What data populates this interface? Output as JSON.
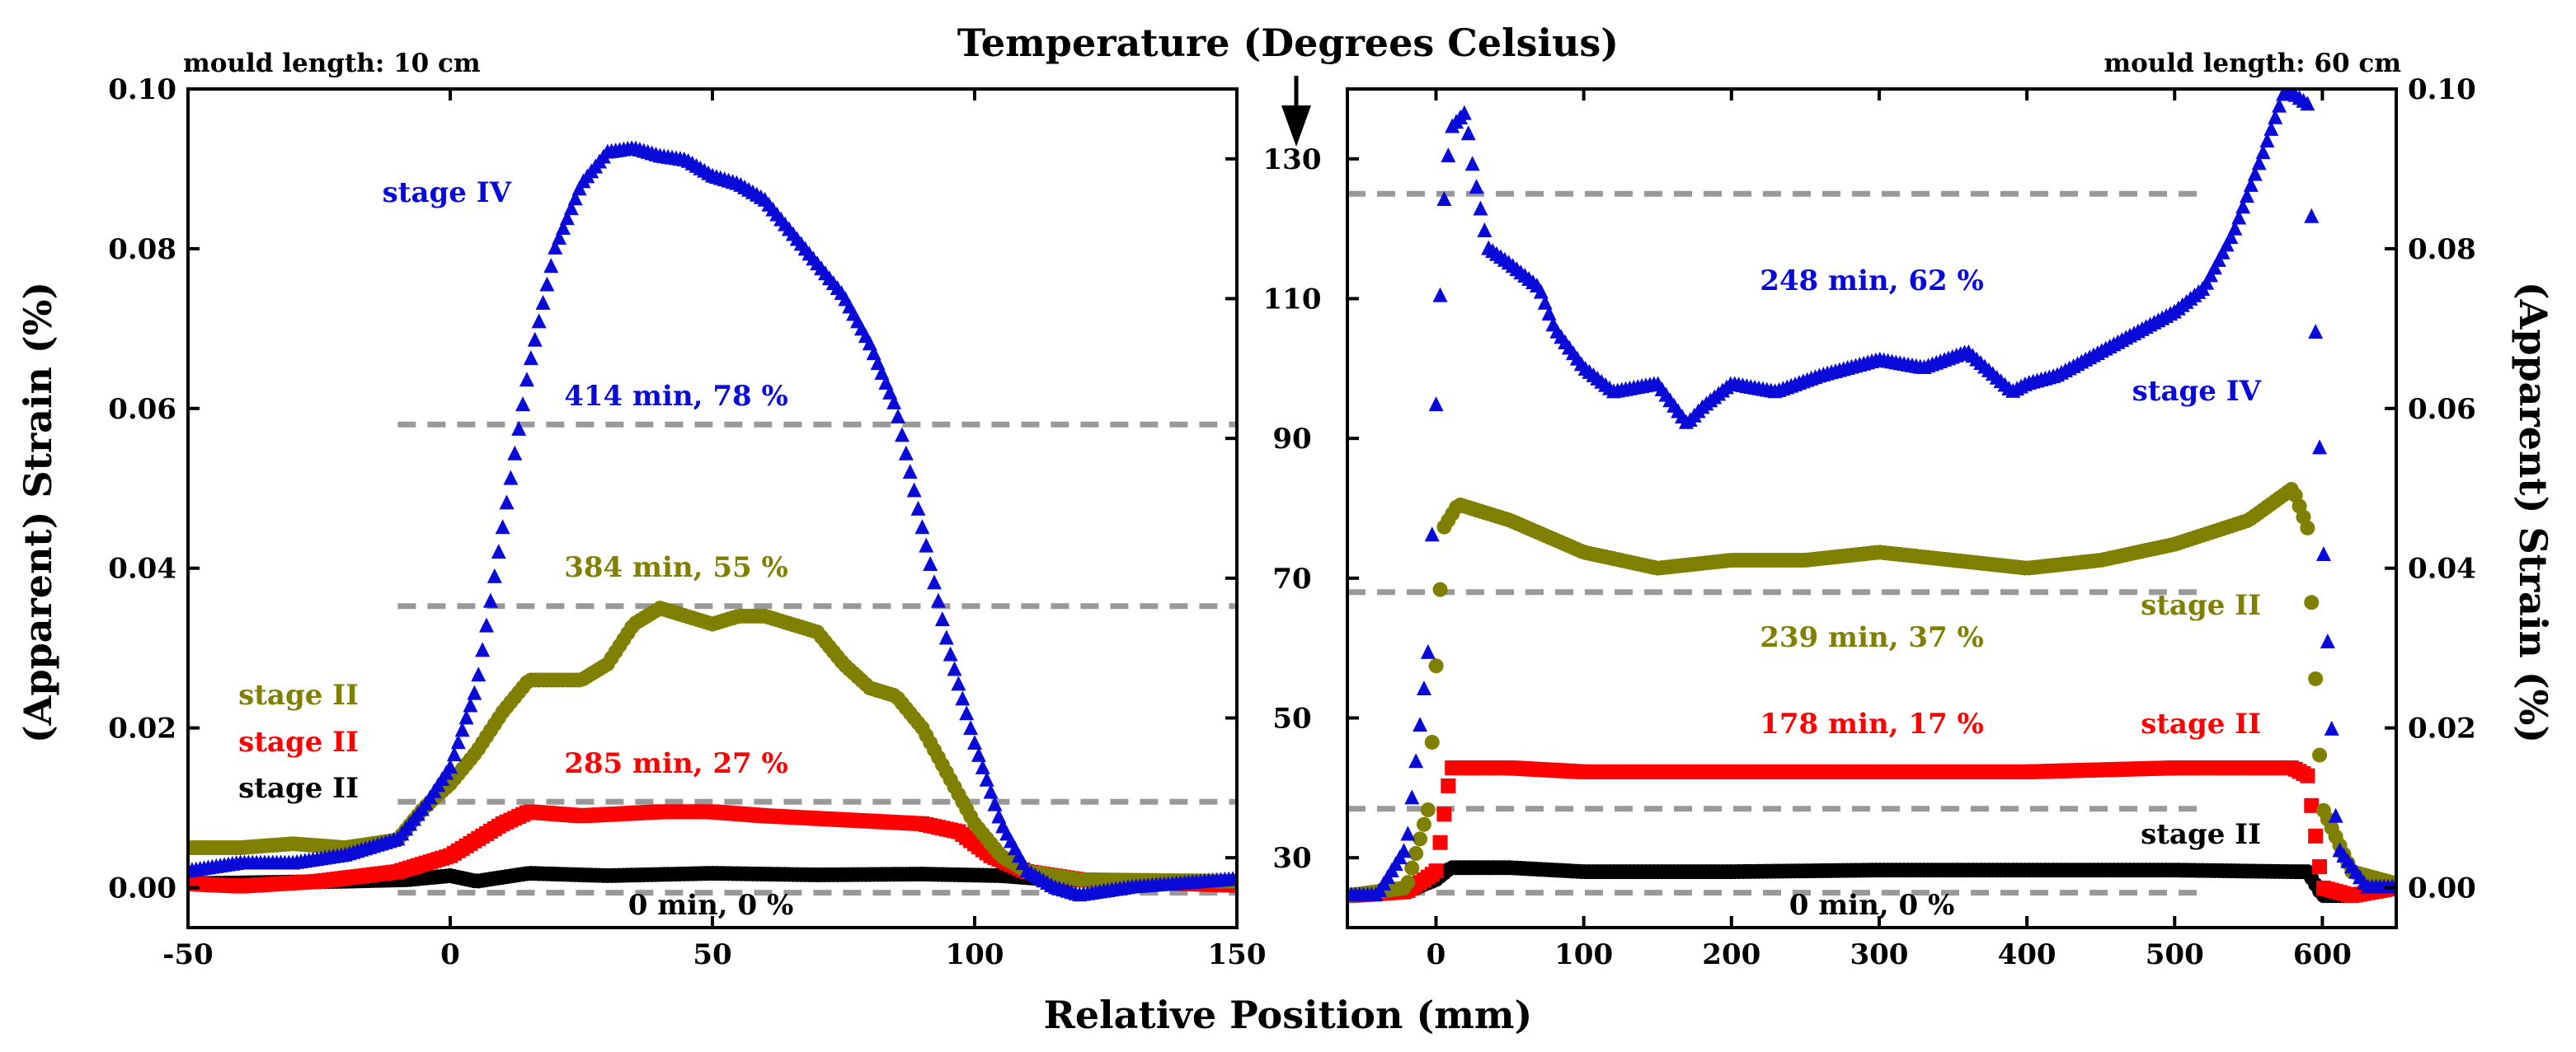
{
  "chart_data": {
    "type": "scatter",
    "title": "Temperature (Degrees Celsius)",
    "xlabel": "Relative Position (mm)",
    "ylabel": "(Apparent) Strain (%)",
    "temperature_axis": {
      "ticks": [
        30,
        50,
        70,
        90,
        110,
        130
      ],
      "tick_labels": [
        "30",
        "50",
        "70",
        "90",
        "110",
        "130"
      ],
      "range": [
        20,
        140
      ]
    },
    "colors": {
      "blue": "#0a0ad8",
      "olive": "#7f7f00",
      "red": "#ff0000",
      "black": "#000000",
      "grid": "#999999"
    },
    "panels": [
      {
        "note": "mould length: 10 cm",
        "xlim": [
          -50,
          150
        ],
        "ylim": [
          -0.005,
          0.1
        ],
        "xticks": [
          -50,
          0,
          50,
          100,
          150
        ],
        "xtick_labels": [
          "-50",
          "0",
          "50",
          "100",
          "150"
        ],
        "yticks": [
          0,
          0.02,
          0.04,
          0.06,
          0.08,
          0.1
        ],
        "ytick_labels": [
          "0.00",
          "0.02",
          "0.04",
          "0.06",
          "0.08",
          "0.10"
        ],
        "temperature_lines": [
          {
            "x1": -10,
            "x2": 150,
            "temp": 25
          },
          {
            "x1": -10,
            "x2": 150,
            "temp": 38
          },
          {
            "x1": -10,
            "x2": 150,
            "temp": 66
          },
          {
            "x1": -10,
            "x2": 150,
            "temp": 92
          }
        ],
        "series": [
          {
            "name": "0 min, 0 %",
            "color": "#000000",
            "marker": "circle",
            "x": [
              -50,
              -20,
              -8,
              0,
              5,
              15,
              30,
              50,
              70,
              90,
              105,
              115,
              130,
              150
            ],
            "y": [
              0.0005,
              0.0008,
              0.001,
              0.0015,
              0.0008,
              0.0018,
              0.0015,
              0.0018,
              0.0016,
              0.0017,
              0.0015,
              0.001,
              0.0008,
              0.0005
            ]
          },
          {
            "name": "285 min, 27 %",
            "color": "#ff0000",
            "marker": "square",
            "x": [
              -50,
              -40,
              -25,
              -10,
              0,
              5,
              10,
              15,
              25,
              40,
              50,
              60,
              75,
              90,
              97,
              103,
              110,
              120,
              140,
              150
            ],
            "y": [
              0.0005,
              0.0002,
              0.0008,
              0.002,
              0.004,
              0.006,
              0.008,
              0.0095,
              0.009,
              0.0095,
              0.0095,
              0.009,
              0.0085,
              0.008,
              0.007,
              0.004,
              0.002,
              0.001,
              0.0005,
              0.0003
            ]
          },
          {
            "name": "384 min, 55 %",
            "color": "#7f7f00",
            "marker": "circle",
            "x": [
              -50,
              -40,
              -30,
              -20,
              -10,
              -5,
              0,
              5,
              10,
              15,
              20,
              25,
              30,
              35,
              40,
              45,
              50,
              55,
              60,
              65,
              70,
              75,
              80,
              85,
              90,
              95,
              100,
              105,
              110,
              120,
              150
            ],
            "y": [
              0.005,
              0.005,
              0.0055,
              0.005,
              0.006,
              0.01,
              0.013,
              0.017,
              0.022,
              0.026,
              0.026,
              0.026,
              0.028,
              0.033,
              0.035,
              0.034,
              0.033,
              0.034,
              0.034,
              0.033,
              0.032,
              0.028,
              0.025,
              0.024,
              0.02,
              0.014,
              0.008,
              0.004,
              0.002,
              0.001,
              0.0008
            ]
          },
          {
            "name": "414 min, 78 %",
            "color": "#0a0ad8",
            "marker": "triangle",
            "x": [
              -50,
              -40,
              -30,
              -20,
              -10,
              -5,
              0,
              5,
              10,
              15,
              20,
              25,
              30,
              35,
              40,
              45,
              50,
              55,
              60,
              65,
              70,
              75,
              80,
              85,
              90,
              95,
              100,
              105,
              110,
              115,
              120,
              130,
              150
            ],
            "y": [
              0.002,
              0.003,
              0.003,
              0.004,
              0.006,
              0.01,
              0.015,
              0.025,
              0.045,
              0.065,
              0.08,
              0.088,
              0.092,
              0.0925,
              0.0915,
              0.091,
              0.089,
              0.088,
              0.086,
              0.082,
              0.078,
              0.074,
              0.068,
              0.06,
              0.045,
              0.03,
              0.018,
              0.008,
              0.002,
              0.0,
              -0.001,
              0.0,
              0.001
            ]
          }
        ],
        "labels": [
          {
            "text": "stage IV",
            "color": "#0a0ad8"
          },
          {
            "text": "414 min, 78 %",
            "color": "#0a0ad8"
          },
          {
            "text": "384 min, 55 %",
            "color": "#7f7f00"
          },
          {
            "text": "stage II",
            "color": "#7f7f00"
          },
          {
            "text": "stage II",
            "color": "#ff0000"
          },
          {
            "text": "stage II",
            "color": "#000000"
          },
          {
            "text": "285 min, 27 %",
            "color": "#ff0000"
          },
          {
            "text": "0 min, 0 %",
            "color": "#000000"
          }
        ]
      },
      {
        "note": "mould length: 60 cm",
        "xlim": [
          -60,
          650
        ],
        "ylim": [
          -0.005,
          0.1
        ],
        "xticks": [
          0,
          100,
          200,
          300,
          400,
          500,
          600
        ],
        "xtick_labels": [
          "0",
          "100",
          "200",
          "300",
          "400",
          "500",
          "600"
        ],
        "yticks": [
          0,
          0.02,
          0.04,
          0.06,
          0.08,
          0.1
        ],
        "ytick_labels": [
          "0.00",
          "0.02",
          "0.04",
          "0.06",
          "0.08",
          "0.10"
        ],
        "temperature_lines": [
          {
            "x1": -60,
            "x2": 520,
            "temp": 25
          },
          {
            "x1": -60,
            "x2": 520,
            "temp": 37
          },
          {
            "x1": -60,
            "x2": 520,
            "temp": 68
          },
          {
            "x1": -60,
            "x2": 520,
            "temp": 125
          }
        ],
        "series": [
          {
            "name": "0 min, 0 %",
            "color": "#000000",
            "marker": "circle",
            "x": [
              -60,
              -20,
              0,
              10,
              50,
              100,
              200,
              300,
              400,
              500,
              580,
              590,
              600,
              620,
              650
            ],
            "y": [
              -0.001,
              -0.0005,
              0.001,
              0.0025,
              0.0025,
              0.002,
              0.002,
              0.0022,
              0.0022,
              0.0022,
              0.002,
              0.002,
              -0.001,
              -0.001,
              0.0
            ]
          },
          {
            "name": "178 min, 17 %",
            "color": "#ff0000",
            "marker": "square",
            "x": [
              -60,
              -20,
              0,
              10,
              50,
              100,
              200,
              300,
              400,
              500,
              560,
              580,
              590,
              600,
              620,
              650
            ],
            "y": [
              -0.001,
              -0.0005,
              0.002,
              0.015,
              0.015,
              0.0145,
              0.0145,
              0.0145,
              0.0145,
              0.015,
              0.015,
              0.015,
              0.014,
              0.0,
              -0.001,
              0.0
            ]
          },
          {
            "name": "239 min, 37 %",
            "color": "#7f7f00",
            "marker": "circle",
            "x": [
              -60,
              -20,
              -5,
              5,
              15,
              50,
              100,
              150,
              200,
              250,
              300,
              350,
              400,
              450,
              500,
              550,
              580,
              590,
              600,
              620,
              650
            ],
            "y": [
              -0.001,
              0.0,
              0.01,
              0.045,
              0.048,
              0.046,
              0.042,
              0.04,
              0.041,
              0.041,
              0.042,
              0.041,
              0.04,
              0.041,
              0.043,
              0.046,
              0.05,
              0.045,
              0.01,
              0.002,
              0.0005
            ]
          },
          {
            "name": "248 min, 62 %",
            "color": "#0a0ad8",
            "marker": "triangle",
            "x": [
              -60,
              -40,
              -20,
              -5,
              0,
              5,
              10,
              20,
              25,
              35,
              50,
              70,
              80,
              100,
              120,
              150,
              170,
              180,
              200,
              230,
              260,
              300,
              330,
              360,
              390,
              400,
              420,
              450,
              480,
              500,
              520,
              540,
              560,
              575,
              590,
              600,
              610,
              630,
              650
            ],
            "y": [
              -0.001,
              -0.001,
              0.005,
              0.03,
              0.06,
              0.085,
              0.095,
              0.097,
              0.09,
              0.08,
              0.078,
              0.075,
              0.07,
              0.065,
              0.062,
              0.063,
              0.058,
              0.06,
              0.063,
              0.062,
              0.064,
              0.066,
              0.065,
              0.067,
              0.062,
              0.063,
              0.064,
              0.067,
              0.07,
              0.072,
              0.075,
              0.082,
              0.092,
              0.1,
              0.098,
              0.045,
              0.005,
              0.0,
              0.0
            ]
          }
        ],
        "labels": [
          {
            "text": "248 min, 62 %",
            "color": "#0a0ad8"
          },
          {
            "text": "stage IV",
            "color": "#0a0ad8"
          },
          {
            "text": "stage II",
            "color": "#7f7f00"
          },
          {
            "text": "239 min, 37 %",
            "color": "#7f7f00"
          },
          {
            "text": "178 min, 17 %",
            "color": "#ff0000"
          },
          {
            "text": "stage II",
            "color": "#ff0000"
          },
          {
            "text": "stage II",
            "color": "#000000"
          },
          {
            "text": "0 min, 0 %",
            "color": "#000000"
          }
        ]
      }
    ]
  }
}
